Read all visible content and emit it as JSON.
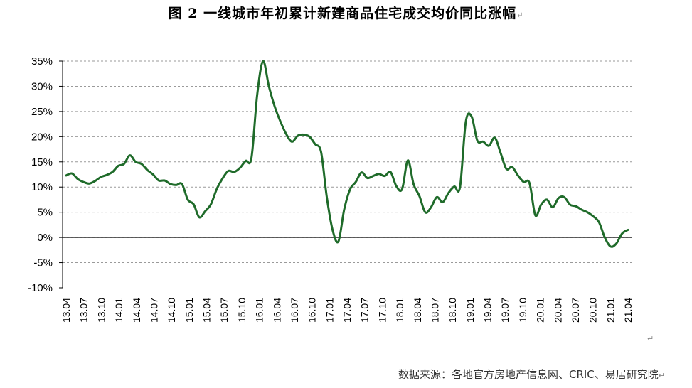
{
  "title": "图 2  一线城市年初累计新建商品住宅成交均价同比涨幅",
  "source": "数据来源：各地官方房地产信息网、CRIC、易居研究院",
  "colors": {
    "line": "#1f6b2a",
    "grid": "#9a9a9a",
    "axis": "#000000"
  },
  "chart_data": {
    "type": "line",
    "title": "图 2  一线城市年初累计新建商品住宅成交均价同比涨幅",
    "xlabel": "",
    "ylabel": "",
    "ylim": [
      -10,
      35
    ],
    "y_ticks": [
      "-10%",
      "-5%",
      "0%",
      "5%",
      "10%",
      "15%",
      "20%",
      "25%",
      "30%",
      "35%"
    ],
    "x_tick_labels": [
      "13.04",
      "13.07",
      "13.10",
      "14.01",
      "14.04",
      "14.07",
      "14.10",
      "15.01",
      "15.04",
      "15.07",
      "15.10",
      "16.01",
      "16.04",
      "16.07",
      "16.10",
      "17.01",
      "17.04",
      "17.07",
      "17.10",
      "18.01",
      "18.04",
      "18.07",
      "18.10",
      "19.01",
      "19.04",
      "19.07",
      "19.10",
      "20.01",
      "20.04",
      "20.07",
      "20.10",
      "21.01",
      "21.04"
    ],
    "grid": "horizontal dashed",
    "series": [
      {
        "values": [
          12.3,
          12.7,
          11.6,
          11.0,
          10.7,
          11.2,
          12.0,
          12.4,
          13.0,
          14.2,
          14.6,
          16.3,
          15.0,
          14.6,
          13.4,
          12.5,
          11.3,
          11.3,
          10.6,
          10.4,
          10.6,
          7.5,
          6.6,
          4.0,
          5.2,
          6.6,
          9.6,
          11.7,
          13.2,
          13.0,
          13.8,
          15.2,
          15.8,
          28.5,
          35.0,
          30.0,
          26.0,
          23.0,
          20.5,
          19.0,
          20.2,
          20.4,
          20.0,
          18.5,
          17.0,
          8.0,
          1.5,
          -0.8,
          5.5,
          9.5,
          11.0,
          12.9,
          11.8,
          12.2,
          12.6,
          12.2,
          13.0,
          10.2,
          9.6,
          15.3,
          10.5,
          8.2,
          5.0,
          6.0,
          8.0,
          7.0,
          8.8,
          10.1,
          10.0,
          23.0,
          24.0,
          19.2,
          19.0,
          18.2,
          19.8,
          16.8,
          13.6,
          14.0,
          12.3,
          11.0,
          10.8,
          4.4,
          6.5,
          7.5,
          6.0,
          7.8,
          8.0,
          6.5,
          6.2,
          5.5,
          5.0,
          4.2,
          3.0,
          0.0,
          -1.8,
          -1.2,
          0.8,
          1.5
        ]
      }
    ]
  }
}
